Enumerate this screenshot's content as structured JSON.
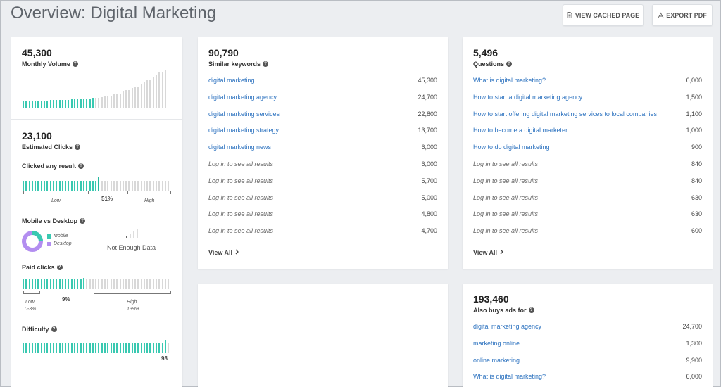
{
  "page": {
    "title": "Overview: Digital Marketing",
    "view_cached_label": "VIEW CACHED PAGE",
    "export_pdf_label": "EXPORT PDF"
  },
  "colors": {
    "accent": "#39c9b1",
    "link": "#2f74c0",
    "desktop": "#b38ef0",
    "grey_bar": "#d8d8d8"
  },
  "icons": {
    "cached": "document-icon",
    "pdf": "pdf-icon",
    "help": "help-icon",
    "chevron": "chevron-right-icon"
  },
  "monthly_volume": {
    "value": "45,300",
    "label": "Monthly Volume",
    "trend": [
      0.18,
      0.18,
      0.19,
      0.19,
      0.2,
      0.2,
      0.2,
      0.21,
      0.21,
      0.21,
      0.22,
      0.22,
      0.23,
      0.23,
      0.24,
      0.25,
      0.26,
      0.27,
      0.28,
      0.29,
      0.31,
      0.33,
      0.36,
      0.39,
      0.43,
      0.47,
      0.52,
      0.57,
      0.62,
      0.68,
      0.74,
      0.8,
      0.86,
      0.93,
      1.0
    ]
  },
  "estimated_clicks": {
    "value": "23,100",
    "label": "Estimated Clicks"
  },
  "clicked_any_result": {
    "label": "Clicked any result",
    "value_label": "51%",
    "value_fraction": 0.51,
    "low_label": "Low",
    "high_label": "High"
  },
  "mobile_vs_desktop": {
    "label": "Mobile vs Desktop",
    "mobile_label": "Mobile",
    "desktop_label": "Desktop",
    "note": "Not Enough Data"
  },
  "paid_clicks": {
    "label": "Paid clicks",
    "value_label": "9%",
    "value_fraction": 0.42,
    "low_label": "Low",
    "low_range": "0-3%",
    "high_label": "High",
    "high_range": "13%+"
  },
  "difficulty": {
    "label": "Difficulty",
    "value": "98",
    "value_fraction": 0.98
  },
  "similar_keywords": {
    "value": "90,790",
    "label": "Similar keywords",
    "rows": [
      {
        "keyword": "digital marketing",
        "volume": "45,300",
        "locked": false
      },
      {
        "keyword": "digital marketing agency",
        "volume": "24,700",
        "locked": false
      },
      {
        "keyword": "digital marketing services",
        "volume": "22,800",
        "locked": false
      },
      {
        "keyword": "digital marketing strategy",
        "volume": "13,700",
        "locked": false
      },
      {
        "keyword": "digital marketing news",
        "volume": "6,000",
        "locked": false
      },
      {
        "keyword": "Log in to see all results",
        "volume": "6,000",
        "locked": true
      },
      {
        "keyword": "Log in to see all results",
        "volume": "5,700",
        "locked": true
      },
      {
        "keyword": "Log in to see all results",
        "volume": "5,000",
        "locked": true
      },
      {
        "keyword": "Log in to see all results",
        "volume": "4,800",
        "locked": true
      },
      {
        "keyword": "Log in to see all results",
        "volume": "4,700",
        "locked": true
      }
    ],
    "view_all": "View All"
  },
  "questions": {
    "value": "5,496",
    "label": "Questions",
    "rows": [
      {
        "keyword": "What is digital marketing?",
        "volume": "6,000",
        "locked": false
      },
      {
        "keyword": "How to start a digital marketing agency",
        "volume": "1,500",
        "locked": false
      },
      {
        "keyword": "How to start offering digital marketing services to local companies",
        "volume": "1,100",
        "locked": false
      },
      {
        "keyword": "How to become a digital marketer",
        "volume": "1,000",
        "locked": false
      },
      {
        "keyword": "How to do digital marketing",
        "volume": "900",
        "locked": false
      },
      {
        "keyword": "Log in to see all results",
        "volume": "840",
        "locked": true
      },
      {
        "keyword": "Log in to see all results",
        "volume": "840",
        "locked": true
      },
      {
        "keyword": "Log in to see all results",
        "volume": "630",
        "locked": true
      },
      {
        "keyword": "Log in to see all results",
        "volume": "630",
        "locked": true
      },
      {
        "keyword": "Log in to see all results",
        "volume": "600",
        "locked": true
      }
    ],
    "view_all": "View All"
  },
  "also_buys": {
    "value": "193,460",
    "label": "Also buys ads for",
    "rows": [
      {
        "keyword": "digital marketing agency",
        "volume": "24,700",
        "locked": false
      },
      {
        "keyword": "marketing online",
        "volume": "1,300",
        "locked": false
      },
      {
        "keyword": "online marketing",
        "volume": "9,900",
        "locked": false
      },
      {
        "keyword": "What is digital marketing?",
        "volume": "6,000",
        "locked": false
      }
    ]
  }
}
